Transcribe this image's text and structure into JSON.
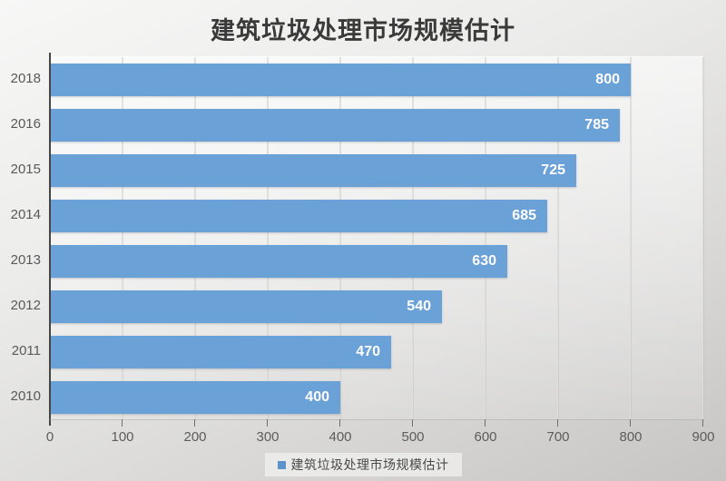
{
  "title": "建筑垃圾处理市场规模估计",
  "legend": {
    "label": "建筑垃圾处理市场规模估计",
    "marker_color": "#5b93cd"
  },
  "colors": {
    "bar": "#6aa1d7",
    "bar_label": "#ffffff",
    "axis": "#454545",
    "grid": "#dededc",
    "tick_text": "#595959",
    "title_text": "#3a3a3a"
  },
  "chart_data": {
    "type": "bar",
    "orientation": "horizontal",
    "title": "建筑垃圾处理市场规模估计",
    "categories": [
      "2018",
      "2016",
      "2015",
      "2014",
      "2013",
      "2012",
      "2011",
      "2010"
    ],
    "values": [
      800,
      785,
      725,
      685,
      630,
      540,
      470,
      400
    ],
    "data_labels": [
      "800",
      "785",
      "725",
      "685",
      "630",
      "540",
      "470",
      "400"
    ],
    "xlabel": "",
    "ylabel": "",
    "xlim": [
      0,
      900
    ],
    "x_ticks": [
      0,
      100,
      200,
      300,
      400,
      500,
      600,
      700,
      800,
      900
    ],
    "grid": true,
    "legend_position": "bottom",
    "legend_entries": [
      "建筑垃圾处理市场规模估计"
    ]
  }
}
